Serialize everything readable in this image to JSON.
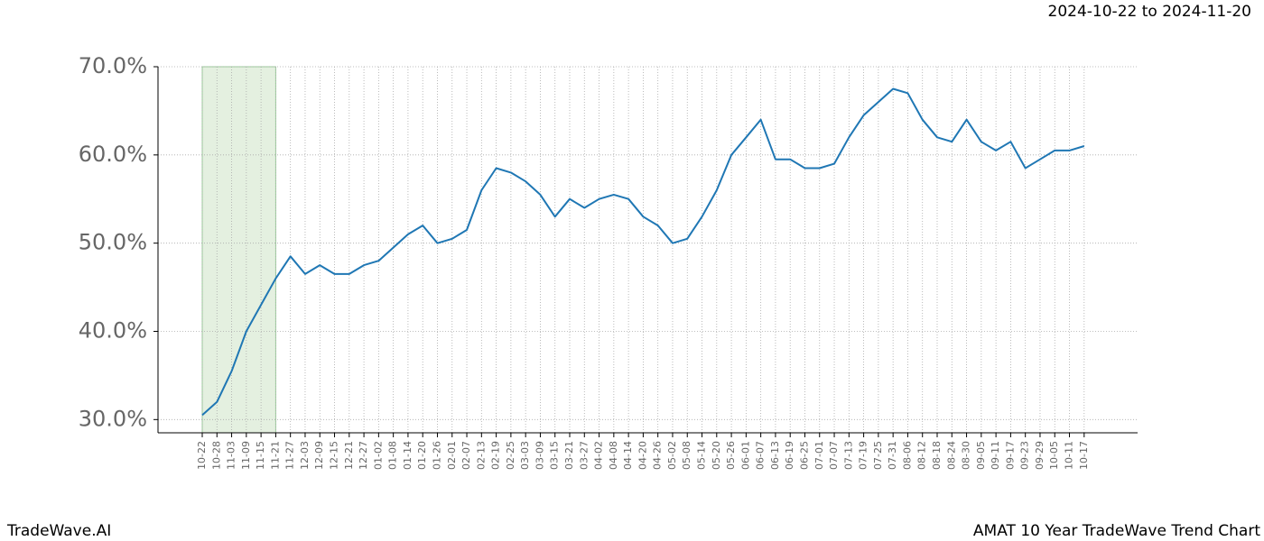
{
  "chart_data": {
    "type": "line",
    "date_range": "2024-10-22 to 2024-11-20",
    "brand": "TradeWave.AI",
    "title": "AMAT 10 Year TradeWave Trend Chart",
    "categories": [
      "10-22",
      "10-28",
      "11-03",
      "11-09",
      "11-15",
      "11-21",
      "11-27",
      "12-03",
      "12-09",
      "12-15",
      "12-21",
      "12-27",
      "01-02",
      "01-08",
      "01-14",
      "01-20",
      "01-26",
      "02-01",
      "02-07",
      "02-13",
      "02-19",
      "02-25",
      "03-03",
      "03-09",
      "03-15",
      "03-21",
      "03-27",
      "04-02",
      "04-08",
      "04-14",
      "04-20",
      "04-26",
      "05-02",
      "05-08",
      "05-14",
      "05-20",
      "05-26",
      "06-01",
      "06-07",
      "06-13",
      "06-19",
      "06-25",
      "07-01",
      "07-07",
      "07-13",
      "07-19",
      "07-25",
      "07-31",
      "08-06",
      "08-12",
      "08-18",
      "08-24",
      "08-30",
      "09-05",
      "09-11",
      "09-17",
      "09-23",
      "09-29",
      "10-05",
      "10-11",
      "10-17"
    ],
    "values": [
      30.5,
      32,
      35.5,
      40,
      43,
      46,
      48.5,
      46.5,
      47.5,
      46.5,
      46.5,
      47.5,
      48,
      49.5,
      51,
      52,
      50,
      50.5,
      51.5,
      56,
      58.5,
      58,
      57,
      55.5,
      53,
      55,
      54,
      55,
      55.5,
      55,
      53,
      52,
      50,
      50.5,
      53,
      56,
      60,
      62,
      64,
      59.5,
      59.5,
      58.5,
      58.5,
      59,
      62,
      64.5,
      66,
      67.5,
      67,
      64,
      62,
      61.5,
      64,
      61.5,
      60.5,
      61.5,
      58.5,
      59.5,
      60.5,
      60.5,
      61
    ],
    "color": "#1f77b4",
    "shade": {
      "from": "10-22",
      "to": "11-21",
      "color": "#d9ead3"
    },
    "ylim": [
      28.5,
      70
    ],
    "yticks": [
      {
        "value": 30,
        "label": "30.0%"
      },
      {
        "value": 40,
        "label": "40.0%"
      },
      {
        "value": 50,
        "label": "50.0%"
      },
      {
        "value": 60,
        "label": "60.0%"
      },
      {
        "value": 70,
        "label": "70.0%"
      }
    ],
    "grid": true
  }
}
